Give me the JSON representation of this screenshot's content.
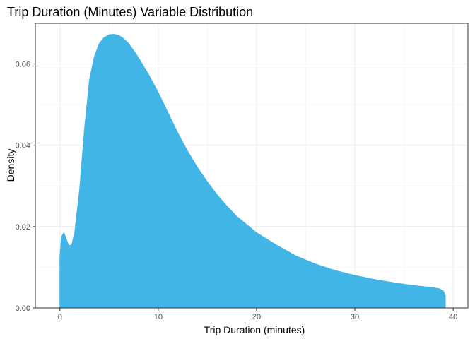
{
  "chart_data": {
    "type": "area",
    "title": "Trip Duration (Minutes) Variable Distribution",
    "xlabel": "Trip Duration (minutes)",
    "ylabel": "Density",
    "xlim": [
      -2.5,
      41.5
    ],
    "ylim": [
      0,
      0.07
    ],
    "x_ticks": [
      0,
      10,
      20,
      30,
      40
    ],
    "x_tick_labels": [
      "0",
      "10",
      "20",
      "30",
      "40"
    ],
    "y_ticks": [
      0,
      0.02,
      0.04,
      0.06
    ],
    "y_tick_labels": [
      "0.00",
      "0.02",
      "0.04",
      "0.06"
    ],
    "grid": true,
    "legend": "none",
    "fill_color": "#41B6E6",
    "x": [
      0.0,
      0.15,
      0.4,
      0.6,
      0.9,
      1.2,
      1.5,
      2.0,
      2.5,
      3.0,
      3.5,
      4.0,
      4.5,
      5.0,
      5.5,
      6.0,
      6.5,
      7.0,
      7.5,
      8.0,
      9.0,
      10.0,
      11.0,
      12.0,
      13.0,
      14.0,
      15.0,
      16.0,
      17.0,
      18.0,
      19.0,
      20.0,
      22.0,
      24.0,
      26.0,
      28.0,
      30.0,
      32.0,
      34.0,
      36.0,
      38.0,
      38.6,
      39.0,
      39.2
    ],
    "values": [
      0.0125,
      0.0175,
      0.0185,
      0.0172,
      0.0153,
      0.0155,
      0.0185,
      0.029,
      0.044,
      0.056,
      0.0618,
      0.065,
      0.0665,
      0.0672,
      0.0673,
      0.067,
      0.0662,
      0.065,
      0.0633,
      0.0615,
      0.0575,
      0.053,
      0.048,
      0.043,
      0.0385,
      0.0345,
      0.031,
      0.0278,
      0.025,
      0.0225,
      0.0205,
      0.0185,
      0.0155,
      0.0128,
      0.0108,
      0.0092,
      0.008,
      0.007,
      0.0062,
      0.0055,
      0.005,
      0.0047,
      0.0042,
      0.003
    ]
  }
}
